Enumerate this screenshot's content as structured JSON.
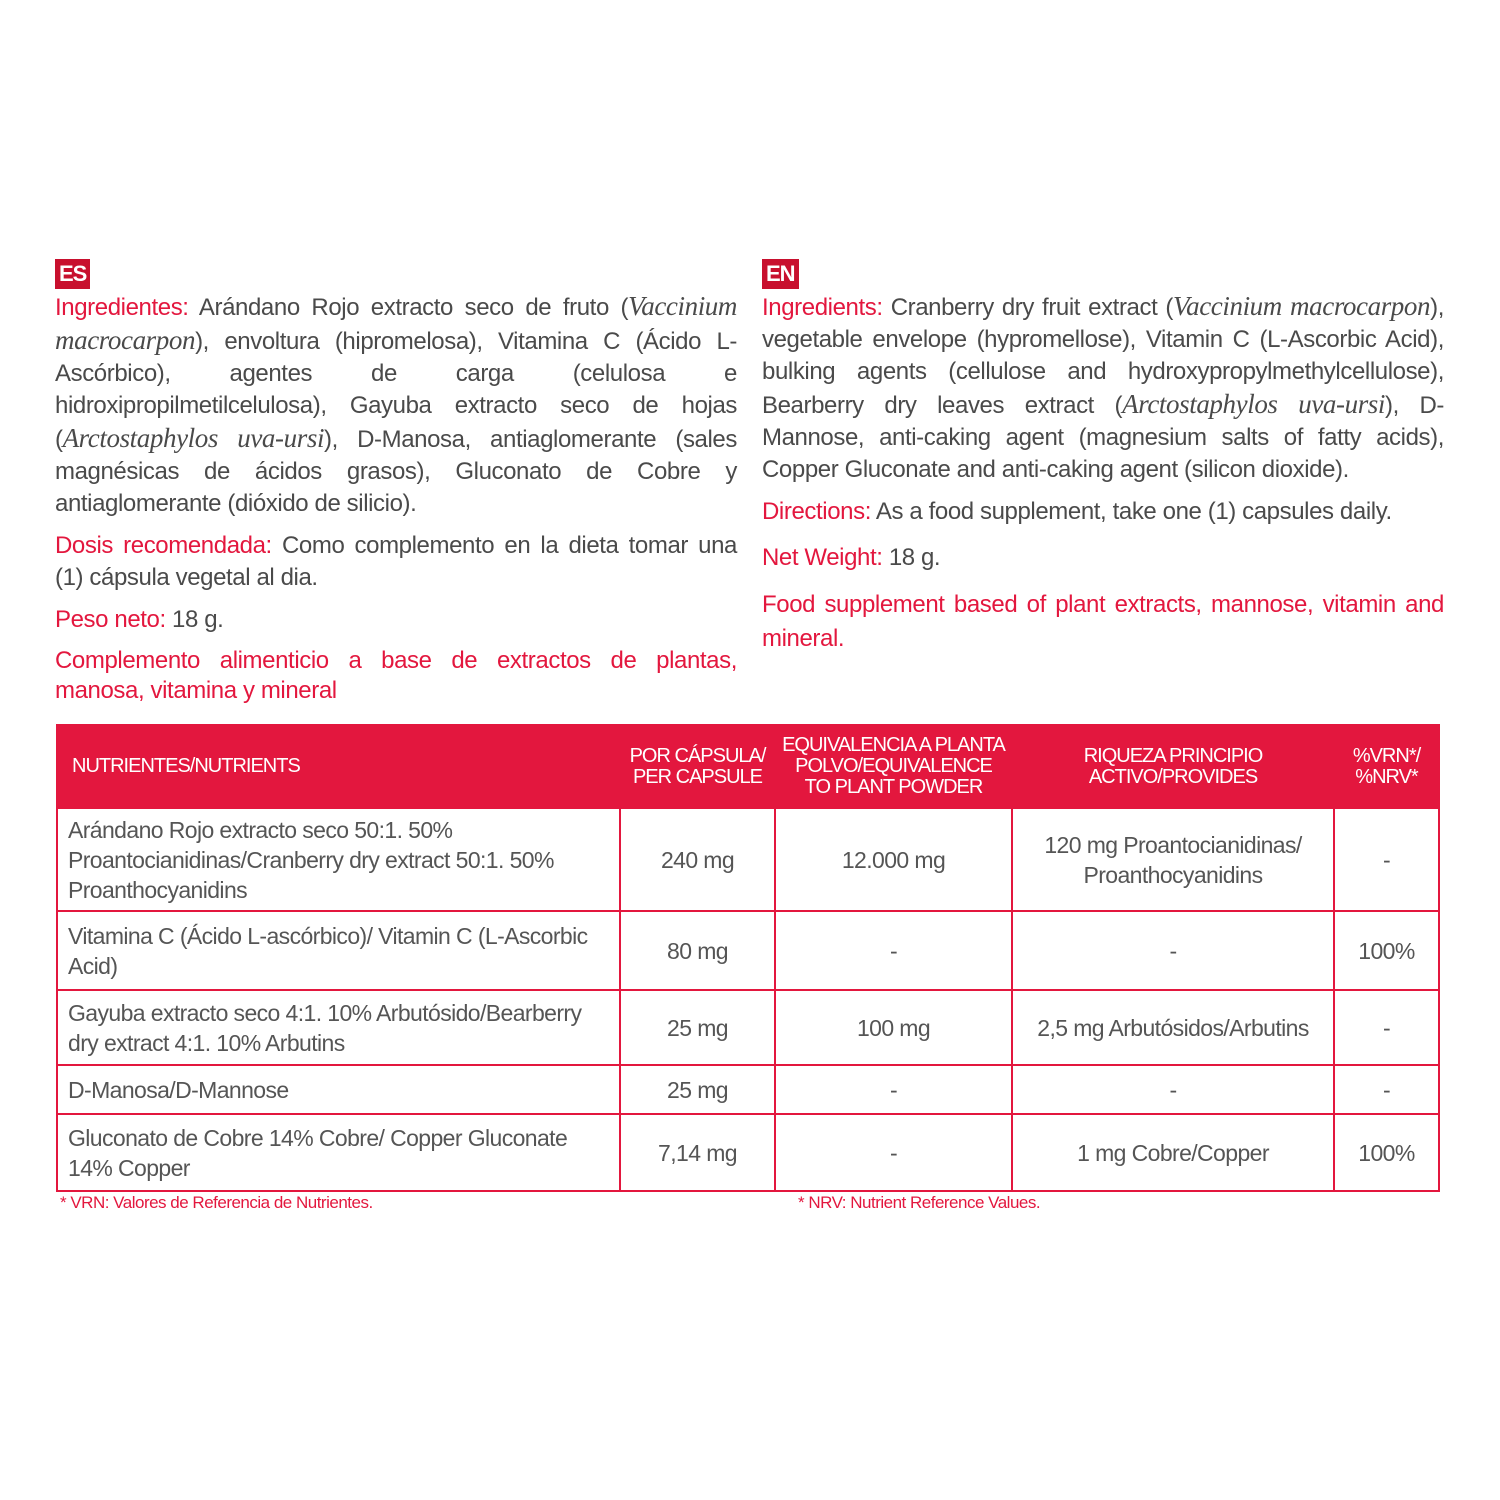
{
  "es": {
    "badge": "ES",
    "ingredients_label": "Ingredientes:",
    "ing1": " Arándano Rojo extracto seco de fruto (",
    "ing_it1": "Vaccinium macrocarpon",
    "ing2": "), envoltura (hipromelosa), Vitamina C (Ácido L-Ascórbico), agentes de carga (celulosa e hidroxipropilmetilcelulosa), Gayuba extracto seco de hojas (",
    "ing_it2": "Arctostaphylos uva-ursi",
    "ing3": "), D-Manosa, antiaglomerante (sales magnésicas de ácidos grasos), Gluconato de Cobre y antiaglomerante (dióxido de silicio).",
    "dose_label": "Dosis recomendada:",
    "dose": " Como complemento en la dieta tomar una (1) cápsula vegetal al dia.",
    "weight_label": "Peso neto:",
    "weight": " 18 g.",
    "claim": "Complemento alimenticio a base de extractos de plantas, manosa, vitamina y mineral"
  },
  "en": {
    "badge": "EN",
    "ingredients_label": "Ingredients:",
    "ing1": " Cranberry dry fruit extract (",
    "ing_it1": "Vaccinium macrocarpon",
    "ing2": "), vegetable envelope (hypromellose), Vitamin C (L-Ascorbic Acid), bulking agents (cellulose and hydroxypropylmethylcellulose), Bearberry dry leaves extract (",
    "ing_it2": "Arctostaphylos uva-ursi",
    "ing3": "), D-Mannose, anti-caking agent (magnesium salts of fatty acids), Copper Gluconate and anti-caking agent (silicon dioxide).",
    "dose_label": "Directions:",
    "dose": " As a food supplement, take one (1) capsules daily.",
    "weight_label": "Net Weight:",
    "weight": " 18 g.",
    "claim": "Food supplement based of plant extracts, mannose, vitamin and mineral."
  },
  "table": {
    "headers": [
      "NUTRIENTES/NUTRIENTS",
      "POR CÁPSULA/ PER CAPSULE",
      "EQUIVALENCIA A PLANTA POLVO/EQUIVALENCE TO PLANT POWDER",
      "RIQUEZA PRINCIPIO ACTIVO/PROVIDES",
      "%VRN*/ %NRV*"
    ],
    "rows": [
      [
        "Arándano Rojo extracto seco 50:1. 50% Proantocianidinas/Cranberry dry extract 50:1. 50% Proanthocyanidins",
        "240 mg",
        "12.000 mg",
        "120 mg Proantocianidinas/ Proanthocyanidins",
        "-"
      ],
      [
        "Vitamina C (Ácido L-ascórbico)/ Vitamin C (L-Ascorbic Acid)",
        "80 mg",
        "-",
        "-",
        "100%"
      ],
      [
        "Gayuba extracto seco 4:1. 10% Arbutósido/Bearberry dry extract 4:1. 10% Arbutins",
        "25 mg",
        "100 mg",
        "2,5 mg Arbutósidos/Arbutins",
        "-"
      ],
      [
        "D-Manosa/D-Mannose",
        "25 mg",
        "-",
        "-",
        "-"
      ],
      [
        "Gluconato de Cobre 14% Cobre/ Copper Gluconate 14% Copper",
        "7,14 mg",
        "-",
        "1 mg Cobre/Copper",
        "100%"
      ]
    ]
  },
  "footnotes": {
    "es": "* VRN: Valores de Referencia de Nutrientes.",
    "en": "* NRV: Nutrient Reference Values."
  },
  "colors": {
    "accent": "#e3173e",
    "text": "#4a4a4a"
  }
}
